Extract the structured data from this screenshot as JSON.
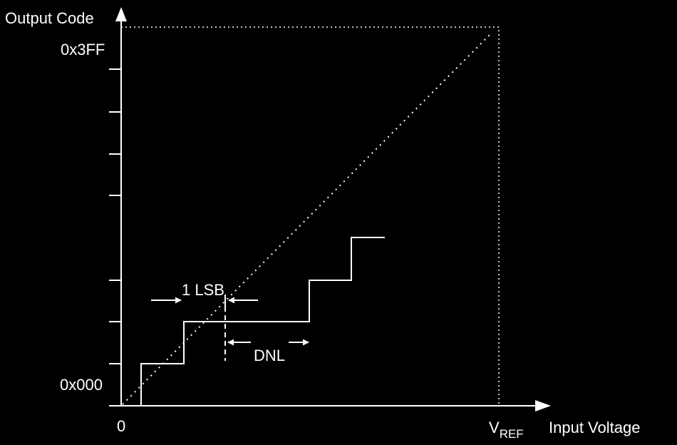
{
  "diagram": {
    "colors": {
      "background": "#000000",
      "foreground": "#ffffff"
    },
    "y_axis": {
      "title": "Output Code",
      "top_label": "0x3FF",
      "bottom_label": "0x000"
    },
    "x_axis": {
      "title": "Input Voltage",
      "origin_label": "0",
      "vref_main": "V",
      "vref_sub": "REF"
    },
    "annotations": {
      "lsb": "1 LSB",
      "dnl": "DNL"
    }
  }
}
